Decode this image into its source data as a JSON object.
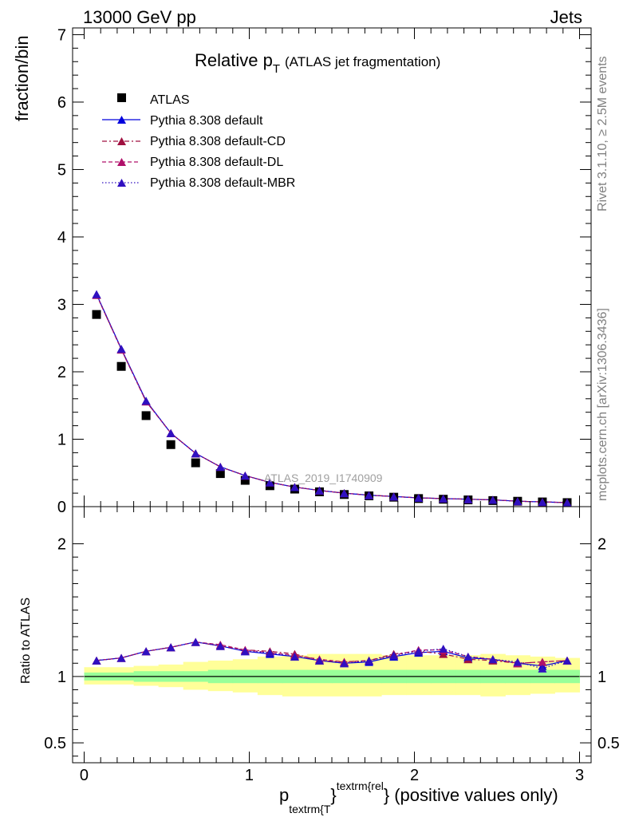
{
  "header": {
    "left": "13000 GeV pp",
    "right": "Jets"
  },
  "side_labels": {
    "rivet": "Rivet 3.1.10, ≥ 2.5M events",
    "mcplots": "mcplots.cern.ch [arXiv:1306.3436]"
  },
  "watermark": "ATLAS_2019_I1740909",
  "chart_data": [
    {
      "type": "scatter",
      "panel": "main",
      "title": {
        "main": "Relative p",
        "sub": "T",
        "suffix": "(ATLAS jet fragmentation)"
      },
      "ylabel": "fraction/bin",
      "xlim": [
        -0.07,
        3.07
      ],
      "ylim": [
        0,
        7.1
      ],
      "yticks": [
        0,
        1,
        2,
        3,
        4,
        5,
        6,
        7
      ],
      "xticks": [
        0,
        1,
        2,
        3
      ],
      "legend": {
        "placement": "top-left",
        "entries": [
          "ATLAS",
          "Pythia 8.308 default",
          "Pythia 8.308 default-CD",
          "Pythia 8.308 default-DL",
          "Pythia 8.308 default-MBR"
        ]
      },
      "x": [
        0.075,
        0.225,
        0.375,
        0.525,
        0.675,
        0.825,
        0.975,
        1.125,
        1.275,
        1.425,
        1.575,
        1.725,
        1.875,
        2.025,
        2.175,
        2.325,
        2.475,
        2.625,
        2.775,
        2.925
      ],
      "series": [
        {
          "name": "ATLAS",
          "style": "data",
          "color": "#000000",
          "values": [
            2.85,
            2.08,
            1.35,
            0.92,
            0.65,
            0.49,
            0.39,
            0.31,
            0.26,
            0.22,
            0.18,
            0.16,
            0.14,
            0.12,
            0.11,
            0.1,
            0.09,
            0.08,
            0.07,
            0.06
          ]
        },
        {
          "name": "Pythia 8.308 default",
          "style": "solid",
          "color": "#0000dd",
          "values": [
            3.15,
            2.34,
            1.57,
            1.09,
            0.79,
            0.59,
            0.46,
            0.36,
            0.29,
            0.24,
            0.2,
            0.17,
            0.15,
            0.13,
            0.12,
            0.11,
            0.1,
            0.08,
            0.07,
            0.06
          ]
        },
        {
          "name": "Pythia 8.308 default-CD",
          "style": "dashdot",
          "color": "#a01040",
          "values": [
            3.14,
            2.33,
            1.56,
            1.09,
            0.79,
            0.59,
            0.46,
            0.36,
            0.29,
            0.24,
            0.2,
            0.17,
            0.15,
            0.13,
            0.12,
            0.11,
            0.1,
            0.08,
            0.07,
            0.06
          ]
        },
        {
          "name": "Pythia 8.308 default-DL",
          "style": "dashed",
          "color": "#b0106a",
          "values": [
            3.14,
            2.33,
            1.56,
            1.09,
            0.79,
            0.59,
            0.46,
            0.36,
            0.29,
            0.24,
            0.2,
            0.17,
            0.15,
            0.13,
            0.12,
            0.11,
            0.1,
            0.08,
            0.07,
            0.06
          ]
        },
        {
          "name": "Pythia 8.308 default-MBR",
          "style": "dotted",
          "color": "#3010c0",
          "values": [
            3.15,
            2.34,
            1.57,
            1.09,
            0.79,
            0.59,
            0.46,
            0.36,
            0.29,
            0.24,
            0.2,
            0.17,
            0.15,
            0.13,
            0.12,
            0.11,
            0.1,
            0.08,
            0.07,
            0.06
          ]
        }
      ]
    },
    {
      "type": "scatter",
      "panel": "ratio",
      "ylabel": "Ratio to ATLAS",
      "xlabel": {
        "p": "p",
        "sub": "textrm{T",
        "brace": "}",
        "sup": "textrm{rel",
        "brace2": "}",
        "suffix": "(positive values only)"
      },
      "xlim": [
        -0.07,
        3.07
      ],
      "ylim": [
        0.35,
        2.28
      ],
      "yticks": [
        0.5,
        1,
        2
      ],
      "ytick_labels": [
        "0.5",
        "1",
        "2"
      ],
      "xticks": [
        0,
        1,
        2,
        3
      ],
      "xtick_labels": [
        "0",
        "1",
        "2",
        "3"
      ],
      "x": [
        0.075,
        0.225,
        0.375,
        0.525,
        0.675,
        0.825,
        0.975,
        1.125,
        1.275,
        1.425,
        1.575,
        1.725,
        1.875,
        2.025,
        2.175,
        2.325,
        2.475,
        2.625,
        2.775,
        2.925
      ],
      "bands": {
        "inner_color": "#99ff99",
        "outer_color": "#ffff99",
        "inner_lo": [
          0.97,
          0.97,
          0.96,
          0.96,
          0.96,
          0.95,
          0.95,
          0.95,
          0.95,
          0.95,
          0.95,
          0.95,
          0.95,
          0.95,
          0.95,
          0.95,
          0.95,
          0.95,
          0.95,
          0.95
        ],
        "inner_hi": [
          1.03,
          1.03,
          1.04,
          1.04,
          1.04,
          1.05,
          1.05,
          1.05,
          1.05,
          1.05,
          1.05,
          1.05,
          1.05,
          1.05,
          1.05,
          1.05,
          1.05,
          1.05,
          1.05,
          1.05
        ],
        "outer_lo": [
          0.94,
          0.94,
          0.93,
          0.92,
          0.9,
          0.89,
          0.88,
          0.86,
          0.85,
          0.85,
          0.85,
          0.85,
          0.86,
          0.86,
          0.86,
          0.86,
          0.85,
          0.86,
          0.87,
          0.88
        ],
        "outer_hi": [
          1.07,
          1.07,
          1.08,
          1.09,
          1.11,
          1.12,
          1.13,
          1.15,
          1.16,
          1.17,
          1.17,
          1.17,
          1.16,
          1.16,
          1.16,
          1.16,
          1.17,
          1.16,
          1.15,
          1.14
        ]
      },
      "series": [
        {
          "name": "Pythia 8.308 default",
          "style": "solid",
          "color": "#0000dd",
          "values": [
            1.12,
            1.14,
            1.19,
            1.22,
            1.26,
            1.23,
            1.19,
            1.17,
            1.15,
            1.12,
            1.1,
            1.11,
            1.15,
            1.18,
            1.19,
            1.14,
            1.13,
            1.1,
            1.08,
            1.12
          ]
        },
        {
          "name": "Pythia 8.308 default-CD",
          "style": "dashdot",
          "color": "#a01040",
          "values": [
            1.12,
            1.14,
            1.19,
            1.22,
            1.26,
            1.23,
            1.2,
            1.19,
            1.17,
            1.12,
            1.11,
            1.12,
            1.17,
            1.19,
            1.17,
            1.13,
            1.12,
            1.1,
            1.11,
            1.12
          ]
        },
        {
          "name": "Pythia 8.308 default-DL",
          "style": "dashed",
          "color": "#b0106a",
          "values": [
            1.12,
            1.14,
            1.19,
            1.22,
            1.26,
            1.24,
            1.2,
            1.18,
            1.16,
            1.13,
            1.11,
            1.12,
            1.16,
            1.2,
            1.2,
            1.15,
            1.13,
            1.1,
            1.11,
            1.12
          ]
        },
        {
          "name": "Pythia 8.308 default-MBR",
          "style": "dotted",
          "color": "#3010c0",
          "values": [
            1.12,
            1.14,
            1.19,
            1.22,
            1.26,
            1.23,
            1.19,
            1.18,
            1.15,
            1.12,
            1.1,
            1.12,
            1.16,
            1.19,
            1.21,
            1.15,
            1.13,
            1.11,
            1.06,
            1.12
          ]
        }
      ]
    }
  ]
}
